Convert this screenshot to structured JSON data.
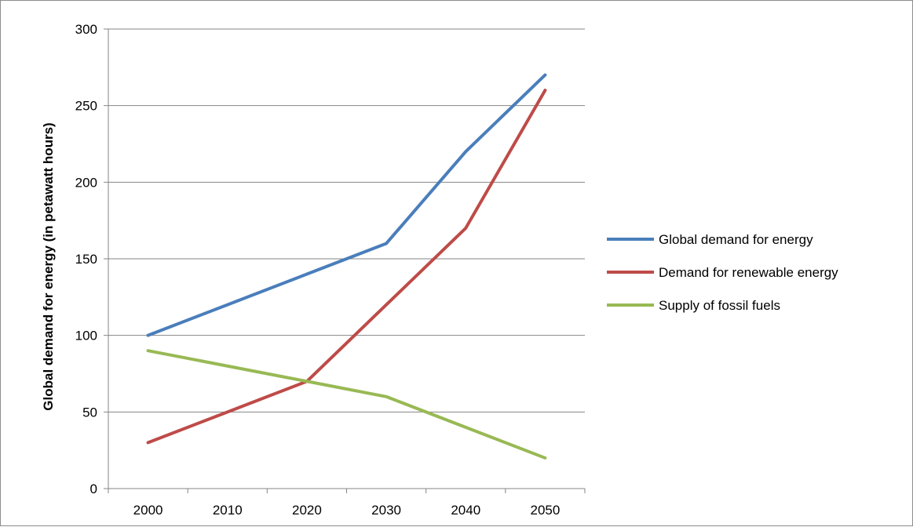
{
  "chart_data": {
    "type": "line",
    "title": "",
    "xlabel": "",
    "ylabel": "Global demand for energy (in petawatt hours)",
    "categories": [
      "2000",
      "2010",
      "2020",
      "2030",
      "2040",
      "2050"
    ],
    "ylim": [
      0,
      300
    ],
    "yticks": [
      "0",
      "50",
      "100",
      "150",
      "200",
      "250",
      "300"
    ],
    "grid": "horizontal",
    "legend_position": "right",
    "series": [
      {
        "name": "Global demand for energy",
        "color": "#4a7ebb",
        "values": [
          100,
          120,
          140,
          160,
          220,
          270
        ]
      },
      {
        "name": "Demand for renewable energy",
        "color": "#be4b48",
        "values": [
          30,
          50,
          70,
          120,
          170,
          260
        ]
      },
      {
        "name": "Supply of fossil fuels",
        "color": "#98b954",
        "values": [
          90,
          80,
          70,
          60,
          40,
          20
        ]
      }
    ]
  }
}
